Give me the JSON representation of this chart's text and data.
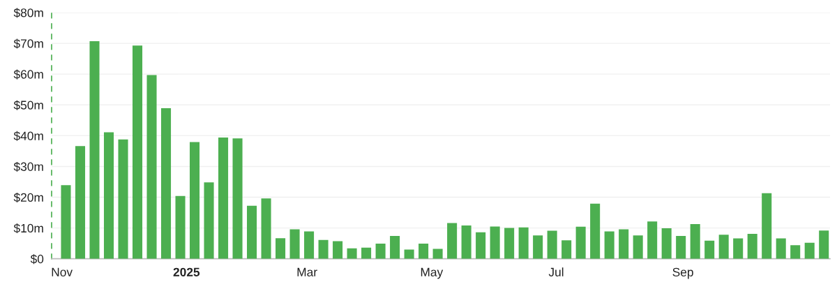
{
  "chart_data": {
    "type": "bar",
    "x": [
      "2024-11-03",
      "2024-11-10",
      "2024-11-17",
      "2024-11-24",
      "2024-12-01",
      "2024-12-08",
      "2024-12-15",
      "2024-12-22",
      "2024-12-29",
      "2025-01-05",
      "2025-01-12",
      "2025-01-19",
      "2025-01-26",
      "2025-02-02",
      "2025-02-09",
      "2025-02-16",
      "2025-02-23",
      "2025-03-02",
      "2025-03-09",
      "2025-03-16",
      "2025-03-23",
      "2025-03-30",
      "2025-04-06",
      "2025-04-13",
      "2025-04-20",
      "2025-04-27",
      "2025-05-04",
      "2025-05-11",
      "2025-05-18",
      "2025-05-25",
      "2025-06-01",
      "2025-06-08",
      "2025-06-15",
      "2025-06-22",
      "2025-06-29",
      "2025-07-06",
      "2025-07-13",
      "2025-07-20",
      "2025-07-27",
      "2025-08-03",
      "2025-08-10",
      "2025-08-17",
      "2025-08-24",
      "2025-08-31",
      "2025-09-07",
      "2025-09-14",
      "2025-09-21",
      "2025-09-28",
      "2025-10-05",
      "2025-10-12",
      "2025-10-19",
      "2025-10-26",
      "2025-11-02",
      "2025-11-09"
    ],
    "values": [
      23.9,
      36.6,
      70.7,
      41.1,
      38.8,
      69.3,
      59.7,
      48.9,
      20.4,
      37.9,
      24.8,
      39.4,
      39.1,
      17.2,
      19.6,
      6.7,
      9.6,
      8.9,
      6.1,
      5.7,
      3.4,
      3.6,
      4.9,
      7.4,
      3.0,
      4.9,
      3.2,
      11.6,
      10.8,
      8.6,
      10.5,
      10.0,
      10.2,
      7.6,
      9.1,
      6.0,
      10.4,
      17.9,
      8.9,
      9.6,
      7.6,
      12.1,
      9.9,
      7.4,
      11.3,
      5.9,
      7.8,
      6.6,
      8.1,
      21.3,
      6.6,
      4.4,
      5.2,
      9.2
    ],
    "color": "#4caf50",
    "xlim": [
      "2024-10-27",
      "2025-11-12"
    ],
    "xticks": [
      {
        "value": "2024-11-01",
        "label": "Nov"
      },
      {
        "value": "2025-01-01",
        "label": "2025"
      },
      {
        "value": "2025-03-01",
        "label": "Mar"
      },
      {
        "value": "2025-05-01",
        "label": "May"
      },
      {
        "value": "2025-07-01",
        "label": "Jul"
      },
      {
        "value": "2025-09-01",
        "label": "Sep"
      }
    ],
    "ylim": [
      0,
      80
    ],
    "yticks": [
      {
        "value": 0,
        "label": "$0"
      },
      {
        "value": 10,
        "label": "$10m"
      },
      {
        "value": 20,
        "label": "$20m"
      },
      {
        "value": 30,
        "label": "$30m"
      },
      {
        "value": 40,
        "label": "$40m"
      },
      {
        "value": 50,
        "label": "$50m"
      },
      {
        "value": 60,
        "label": "$60m"
      },
      {
        "value": 70,
        "label": "$70m"
      },
      {
        "value": 80,
        "label": "$80m"
      }
    ],
    "grid": "y",
    "legend": false
  }
}
